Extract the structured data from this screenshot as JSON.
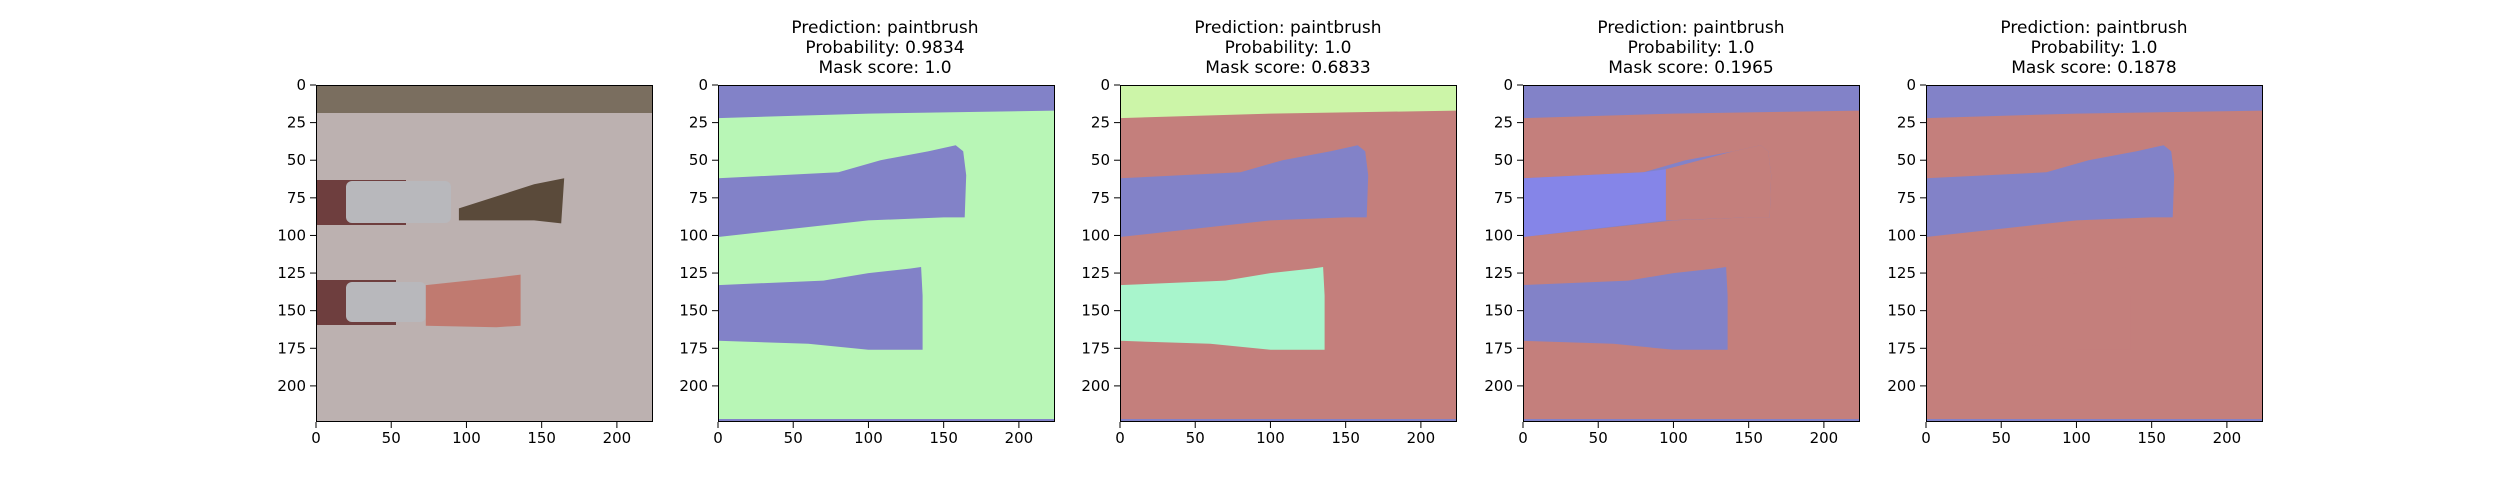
{
  "panels": [
    {
      "id": "original",
      "title_lines": [],
      "kind": "photo"
    },
    {
      "id": "mask-1",
      "title_lines": [
        "Prediction: paintbrush",
        "Probability: 0.9834",
        "Mask score: 1.0"
      ],
      "kind": "segmentation",
      "colors": {
        "background": "#b8f6b6",
        "top": "#8282c8",
        "upper_brush": "#8282c8",
        "lower_brush": "#8282c8",
        "bottom_edge": "#8282c8"
      }
    },
    {
      "id": "mask-2",
      "title_lines": [
        "Prediction: paintbrush",
        "Probability: 1.0",
        "Mask score: 0.6833"
      ],
      "kind": "segmentation",
      "colors": {
        "background": "#c47f7c",
        "top": "#ccf5a8",
        "upper_brush": "#8282c8",
        "lower_brush": "#a8f5cc",
        "bottom_edge": "#8282c8"
      }
    },
    {
      "id": "mask-3",
      "title_lines": [
        "Prediction: paintbrush",
        "Probability: 1.0",
        "Mask score: 0.1965"
      ],
      "kind": "segmentation",
      "colors": {
        "background": "#c47f7c",
        "top": "#8282c8",
        "upper_brush": "#8282c8",
        "upper_ferrule": "#8585e8",
        "upper_bristles": "#c47f7c",
        "lower_brush": "#8282c8",
        "bottom_edge": "#8282c8"
      }
    },
    {
      "id": "mask-4",
      "title_lines": [
        "Prediction: paintbrush",
        "Probability: 1.0",
        "Mask score: 0.1878"
      ],
      "kind": "segmentation",
      "colors": {
        "background": "#c47f7c",
        "top": "#8282c8",
        "upper_brush": "#8282c8",
        "lower_brush": "#c47f7c",
        "bottom_edge": "#8282c8"
      }
    }
  ],
  "axes": {
    "x_ticks": [
      "0",
      "50",
      "100",
      "150",
      "200"
    ],
    "y_ticks": [
      "0",
      "25",
      "50",
      "75",
      "100",
      "125",
      "150",
      "175",
      "200"
    ]
  },
  "photo_colors": {
    "background": "#bcb1b0",
    "top_band": "#7a6e5f",
    "handle": "#6e3e3e",
    "ferrule": "#b8b8bc",
    "upper_bristles": "#5a4a3a",
    "lower_bristles": "#c07a70"
  }
}
